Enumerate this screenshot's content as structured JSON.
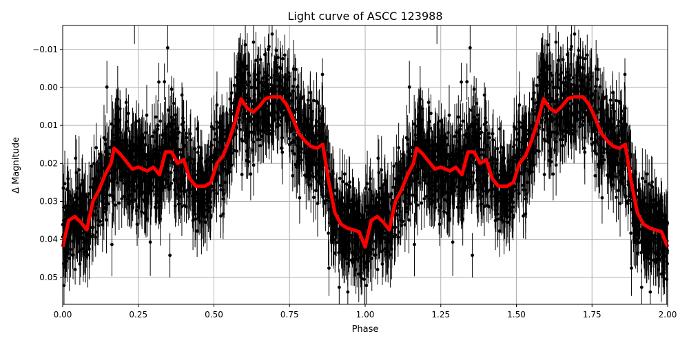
{
  "chart_data": {
    "type": "scatter",
    "title": "Light curve of ASCC 123988",
    "xlabel": "Phase",
    "ylabel": "Δ Magnitude",
    "xlim": [
      0,
      2
    ],
    "ylim": [
      0.0571,
      -0.0163
    ],
    "y_inverted": true,
    "grid": true,
    "xticks": [
      0,
      0.25,
      0.5,
      0.75,
      1.0,
      1.25,
      1.5,
      1.75,
      2.0
    ],
    "xtick_labels": [
      "0.00",
      "0.25",
      "0.50",
      "0.75",
      "1.00",
      "1.25",
      "1.50",
      "1.75",
      "2.00"
    ],
    "yticks": [
      -0.01,
      0.0,
      0.01,
      0.02,
      0.03,
      0.04,
      0.05
    ],
    "ytick_labels": [
      "−0.01",
      "0.00",
      "0.01",
      "0.02",
      "0.03",
      "0.04",
      "0.05"
    ],
    "series": [
      {
        "kind": "errorbar-scatter",
        "color": "#000000",
        "description_of_points": "phase-folded photometry, repeated for phase 0–1 and 1–2"
      },
      {
        "kind": "line",
        "color": "#ff0000",
        "x": [
          0,
          0.02,
          0.04,
          0.06,
          0.08,
          0.1,
          0.12,
          0.14,
          0.16,
          0.17,
          0.19,
          0.21,
          0.23,
          0.25,
          0.28,
          0.3,
          0.32,
          0.34,
          0.36,
          0.38,
          0.4,
          0.42,
          0.44,
          0.47,
          0.49,
          0.51,
          0.53,
          0.55,
          0.57,
          0.59,
          0.61,
          0.63,
          0.65,
          0.67,
          0.69,
          0.72,
          0.74,
          0.76,
          0.78,
          0.8,
          0.82,
          0.84,
          0.86,
          0.88,
          0.9,
          0.92,
          0.94,
          0.96,
          0.98,
          1.0
        ],
        "y": [
          0.042,
          0.035,
          0.034,
          0.0355,
          0.0375,
          0.03,
          0.027,
          0.023,
          0.02,
          0.016,
          0.0175,
          0.0195,
          0.0215,
          0.021,
          0.022,
          0.021,
          0.023,
          0.017,
          0.017,
          0.02,
          0.019,
          0.024,
          0.026,
          0.026,
          0.025,
          0.02,
          0.018,
          0.014,
          0.009,
          0.003,
          0.0055,
          0.0065,
          0.005,
          0.003,
          0.0025,
          0.0025,
          0.0045,
          0.008,
          0.012,
          0.014,
          0.0155,
          0.016,
          0.015,
          0.025,
          0.033,
          0.036,
          0.037,
          0.0375,
          0.038,
          0.042
        ]
      }
    ]
  }
}
